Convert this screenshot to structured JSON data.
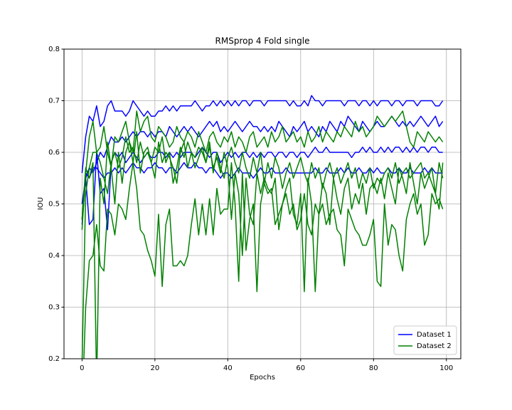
{
  "chart_data": {
    "type": "line",
    "title": "RMSprop 4 Fold single",
    "x_label": "Epochs",
    "y_label": "IOU",
    "x": [
      0,
      1,
      2,
      3,
      4,
      5,
      6,
      7,
      8,
      9,
      10,
      11,
      12,
      13,
      14,
      15,
      16,
      17,
      18,
      19,
      20,
      21,
      22,
      23,
      24,
      25,
      26,
      27,
      28,
      29,
      30,
      31,
      32,
      33,
      34,
      35,
      36,
      37,
      38,
      39,
      40,
      41,
      42,
      43,
      44,
      45,
      46,
      47,
      48,
      49,
      50,
      51,
      52,
      53,
      54,
      55,
      56,
      57,
      58,
      59,
      60,
      61,
      62,
      63,
      64,
      65,
      66,
      67,
      68,
      69,
      70,
      71,
      72,
      73,
      74,
      75,
      76,
      77,
      78,
      79,
      80,
      81,
      82,
      83,
      84,
      85,
      86,
      87,
      88,
      89,
      90,
      91,
      92,
      93,
      94,
      95,
      96,
      97,
      98,
      99
    ],
    "xlim": [
      -4.95,
      103.95
    ],
    "xticks": [
      0,
      20,
      40,
      60,
      80,
      100
    ],
    "ylim": [
      0.2,
      0.8
    ],
    "yticks": [
      0.2,
      0.3,
      0.4,
      0.5,
      0.6,
      0.7,
      0.8
    ],
    "grid": true,
    "legend": "lower right",
    "series": [
      {
        "name": "Dataset 1",
        "color": "#0000ff",
        "values": [
          [
            0.56,
            0.63,
            0.67,
            0.66,
            0.69,
            0.65,
            0.66,
            0.69,
            0.7,
            0.68,
            0.68,
            0.68,
            0.67,
            0.68,
            0.7,
            0.69,
            0.68,
            0.67,
            0.68,
            0.67,
            0.67,
            0.68,
            0.68,
            0.69,
            0.68,
            0.69,
            0.68,
            0.69,
            0.69,
            0.69,
            0.69,
            0.7,
            0.69,
            0.68,
            0.69,
            0.69,
            0.7,
            0.69,
            0.7,
            0.69,
            0.7,
            0.69,
            0.7,
            0.69,
            0.7,
            0.7,
            0.69,
            0.7,
            0.7,
            0.7,
            0.69,
            0.7,
            0.7,
            0.7,
            0.7,
            0.7,
            0.7,
            0.69,
            0.7,
            0.69,
            0.69,
            0.7,
            0.69,
            0.71,
            0.7,
            0.7,
            0.69,
            0.7,
            0.7,
            0.7,
            0.7,
            0.7,
            0.69,
            0.7,
            0.7,
            0.7,
            0.69,
            0.7,
            0.7,
            0.69,
            0.7,
            0.69,
            0.7,
            0.7,
            0.7,
            0.69,
            0.7,
            0.7,
            0.69,
            0.7,
            0.7,
            0.7,
            0.69,
            0.7,
            0.7,
            0.7,
            0.7,
            0.69,
            0.69,
            0.7
          ],
          [
            0.5,
            0.55,
            0.57,
            0.56,
            0.58,
            0.6,
            0.59,
            0.61,
            0.63,
            0.62,
            0.62,
            0.63,
            0.62,
            0.63,
            0.64,
            0.63,
            0.64,
            0.64,
            0.63,
            0.64,
            0.63,
            0.64,
            0.64,
            0.63,
            0.65,
            0.64,
            0.63,
            0.64,
            0.65,
            0.64,
            0.65,
            0.64,
            0.63,
            0.64,
            0.65,
            0.66,
            0.65,
            0.66,
            0.64,
            0.65,
            0.64,
            0.65,
            0.66,
            0.65,
            0.64,
            0.65,
            0.66,
            0.65,
            0.65,
            0.64,
            0.65,
            0.64,
            0.65,
            0.64,
            0.66,
            0.65,
            0.64,
            0.63,
            0.65,
            0.64,
            0.65,
            0.66,
            0.64,
            0.65,
            0.64,
            0.63,
            0.65,
            0.64,
            0.66,
            0.65,
            0.64,
            0.66,
            0.65,
            0.67,
            0.66,
            0.65,
            0.64,
            0.66,
            0.65,
            0.64,
            0.65,
            0.66,
            0.65,
            0.65,
            0.66,
            0.67,
            0.66,
            0.65,
            0.66,
            0.65,
            0.66,
            0.65,
            0.66,
            0.67,
            0.66,
            0.65,
            0.66,
            0.67,
            0.65,
            0.66
          ],
          [
            0.46,
            0.55,
            0.46,
            0.47,
            0.6,
            0.52,
            0.53,
            0.45,
            0.58,
            0.6,
            0.59,
            0.6,
            0.58,
            0.59,
            0.6,
            0.59,
            0.58,
            0.59,
            0.6,
            0.59,
            0.59,
            0.6,
            0.6,
            0.59,
            0.6,
            0.59,
            0.6,
            0.59,
            0.6,
            0.6,
            0.6,
            0.59,
            0.6,
            0.61,
            0.6,
            0.59,
            0.6,
            0.6,
            0.58,
            0.59,
            0.6,
            0.59,
            0.6,
            0.59,
            0.6,
            0.6,
            0.59,
            0.6,
            0.59,
            0.6,
            0.59,
            0.6,
            0.6,
            0.59,
            0.6,
            0.6,
            0.59,
            0.6,
            0.6,
            0.59,
            0.6,
            0.6,
            0.59,
            0.6,
            0.61,
            0.6,
            0.6,
            0.61,
            0.6,
            0.6,
            0.6,
            0.6,
            0.6,
            0.6,
            0.59,
            0.6,
            0.6,
            0.61,
            0.6,
            0.61,
            0.6,
            0.6,
            0.61,
            0.6,
            0.61,
            0.6,
            0.61,
            0.61,
            0.6,
            0.61,
            0.6,
            0.61,
            0.6,
            0.61,
            0.61,
            0.6,
            0.61,
            0.61,
            0.6,
            0.6
          ],
          [
            0.47,
            0.56,
            0.55,
            0.57,
            0.57,
            0.56,
            0.55,
            0.56,
            0.56,
            0.57,
            0.56,
            0.57,
            0.56,
            0.57,
            0.58,
            0.57,
            0.57,
            0.56,
            0.57,
            0.57,
            0.58,
            0.57,
            0.57,
            0.56,
            0.57,
            0.57,
            0.56,
            0.57,
            0.58,
            0.57,
            0.57,
            0.58,
            0.57,
            0.57,
            0.56,
            0.57,
            0.57,
            0.56,
            0.55,
            0.56,
            0.56,
            0.55,
            0.56,
            0.57,
            0.56,
            0.56,
            0.56,
            0.55,
            0.56,
            0.57,
            0.56,
            0.56,
            0.57,
            0.56,
            0.56,
            0.56,
            0.57,
            0.56,
            0.56,
            0.56,
            0.56,
            0.56,
            0.56,
            0.56,
            0.57,
            0.56,
            0.56,
            0.57,
            0.56,
            0.56,
            0.56,
            0.57,
            0.56,
            0.57,
            0.56,
            0.56,
            0.57,
            0.56,
            0.56,
            0.57,
            0.56,
            0.57,
            0.56,
            0.56,
            0.57,
            0.56,
            0.56,
            0.57,
            0.56,
            0.56,
            0.57,
            0.56,
            0.56,
            0.56,
            0.57,
            0.56,
            0.57,
            0.56,
            0.56,
            0.56
          ]
        ]
      },
      {
        "name": "Dataset 2",
        "color": "#008000",
        "values": [
          [
            0.45,
            0.56,
            0.63,
            0.66,
            0.6,
            0.61,
            0.65,
            0.6,
            0.57,
            0.63,
            0.62,
            0.64,
            0.66,
            0.62,
            0.6,
            0.68,
            0.64,
            0.66,
            0.67,
            0.63,
            0.62,
            0.65,
            0.64,
            0.63,
            0.61,
            0.62,
            0.65,
            0.63,
            0.62,
            0.64,
            0.63,
            0.61,
            0.64,
            0.62,
            0.6,
            0.63,
            0.64,
            0.62,
            0.61,
            0.63,
            0.62,
            0.64,
            0.61,
            0.63,
            0.62,
            0.6,
            0.63,
            0.64,
            0.61,
            0.62,
            0.63,
            0.61,
            0.64,
            0.62,
            0.63,
            0.65,
            0.62,
            0.63,
            0.64,
            0.62,
            0.63,
            0.61,
            0.64,
            0.62,
            0.63,
            0.65,
            0.62,
            0.64,
            0.63,
            0.62,
            0.64,
            0.63,
            0.65,
            0.64,
            0.63,
            0.66,
            0.64,
            0.65,
            0.63,
            0.64,
            0.65,
            0.67,
            0.66,
            0.65,
            0.66,
            0.67,
            0.66,
            0.67,
            0.68,
            0.65,
            0.62,
            0.61,
            0.64,
            0.63,
            0.62,
            0.64,
            0.63,
            0.62,
            0.63,
            0.62
          ],
          [
            0.19,
            0.52,
            0.57,
            0.6,
            0.6,
            0.58,
            0.55,
            0.52,
            0.58,
            0.6,
            0.57,
            0.59,
            0.63,
            0.6,
            0.61,
            0.58,
            0.62,
            0.59,
            0.6,
            0.58,
            0.61,
            0.6,
            0.63,
            0.58,
            0.6,
            0.54,
            0.57,
            0.61,
            0.59,
            0.62,
            0.6,
            0.57,
            0.59,
            0.61,
            0.58,
            0.62,
            0.56,
            0.6,
            0.57,
            0.55,
            0.59,
            0.61,
            0.58,
            0.56,
            0.6,
            0.57,
            0.55,
            0.59,
            0.56,
            0.6,
            0.54,
            0.58,
            0.55,
            0.59,
            0.57,
            0.53,
            0.56,
            0.58,
            0.55,
            0.57,
            0.59,
            0.56,
            0.54,
            0.58,
            0.55,
            0.57,
            0.53,
            0.56,
            0.58,
            0.55,
            0.57,
            0.54,
            0.56,
            0.58,
            0.55,
            0.57,
            0.53,
            0.56,
            0.54,
            0.57,
            0.53,
            0.55,
            0.54,
            0.56,
            0.57,
            0.55,
            0.58,
            0.54,
            0.56,
            0.57,
            0.55,
            0.56,
            0.57,
            0.58,
            0.55,
            0.56,
            0.54,
            0.52,
            0.58,
            0.55
          ],
          [
            0.1,
            0.3,
            0.39,
            0.4,
            0.46,
            0.38,
            0.37,
            0.49,
            0.48,
            0.44,
            0.5,
            0.49,
            0.47,
            0.53,
            0.58,
            0.53,
            0.45,
            0.44,
            0.41,
            0.39,
            0.36,
            0.48,
            0.34,
            0.46,
            0.49,
            0.38,
            0.38,
            0.39,
            0.38,
            0.4,
            0.46,
            0.51,
            0.44,
            0.5,
            0.44,
            0.51,
            0.44,
            0.53,
            0.48,
            0.49,
            0.49,
            0.58,
            0.5,
            0.35,
            0.56,
            0.41,
            0.47,
            0.5,
            0.33,
            0.5,
            0.54,
            0.52,
            0.53,
            0.46,
            0.48,
            0.5,
            0.52,
            0.48,
            0.5,
            0.45,
            0.47,
            0.52,
            0.46,
            0.44,
            0.5,
            0.48,
            0.5,
            0.46,
            0.48,
            0.49,
            0.45,
            0.44,
            0.38,
            0.49,
            0.47,
            0.45,
            0.44,
            0.42,
            0.42,
            0.44,
            0.47,
            0.35,
            0.34,
            0.5,
            0.42,
            0.46,
            0.45,
            0.4,
            0.37,
            0.47,
            0.5,
            0.52,
            0.48,
            0.5,
            0.42,
            0.44,
            0.52,
            0.5,
            0.51,
            0.49
          ],
          [
            0.47,
            0.57,
            0.55,
            0.58,
            0.15,
            0.55,
            0.5,
            0.62,
            0.57,
            0.5,
            0.6,
            0.54,
            0.6,
            0.62,
            0.58,
            0.64,
            0.56,
            0.6,
            0.61,
            0.58,
            0.55,
            0.62,
            0.58,
            0.6,
            0.59,
            0.57,
            0.54,
            0.6,
            0.62,
            0.57,
            0.6,
            0.59,
            0.61,
            0.6,
            0.58,
            0.61,
            0.57,
            0.59,
            0.56,
            0.6,
            0.57,
            0.47,
            0.56,
            0.52,
            0.4,
            0.55,
            0.48,
            0.46,
            0.56,
            0.52,
            0.55,
            0.53,
            0.52,
            0.55,
            0.45,
            0.5,
            0.53,
            0.55,
            0.48,
            0.46,
            0.52,
            0.33,
            0.55,
            0.5,
            0.33,
            0.48,
            0.54,
            0.52,
            0.46,
            0.55,
            0.51,
            0.48,
            0.53,
            0.55,
            0.49,
            0.52,
            0.5,
            0.54,
            0.48,
            0.53,
            0.54,
            0.52,
            0.55,
            0.51,
            0.56,
            0.53,
            0.5,
            0.57,
            0.55,
            0.52,
            0.58,
            0.54,
            0.5,
            0.56,
            0.53,
            0.55,
            0.57,
            0.52,
            0.49,
            0.58
          ]
        ]
      }
    ]
  }
}
